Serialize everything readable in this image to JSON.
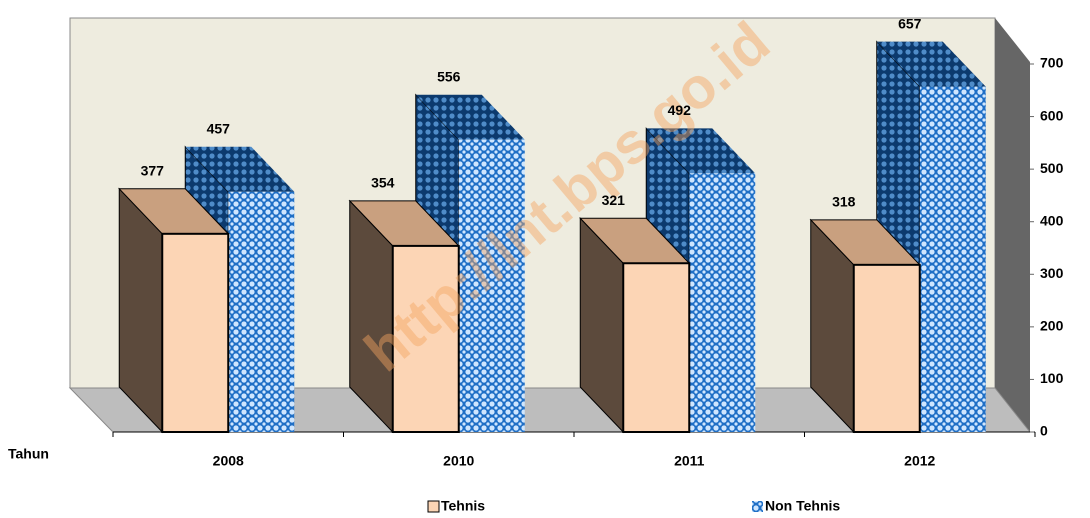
{
  "chart_data": {
    "type": "bar3d",
    "x_label": "Tahun",
    "watermark": "http://lnt.bps.go.id",
    "categories": [
      "2008",
      "2010",
      "2011",
      "2012"
    ],
    "series": [
      {
        "name": "Tehnis",
        "color": "#fcd5b5",
        "values": [
          377,
          354,
          321,
          318
        ]
      },
      {
        "name": "Non Tehnis",
        "color": "#1f6fc6",
        "values": [
          457,
          556,
          492,
          657
        ]
      }
    ],
    "ylim": [
      0,
      700
    ],
    "yticks": [
      0,
      100,
      200,
      300,
      400,
      500,
      600,
      700
    ],
    "legend": "bottom"
  }
}
